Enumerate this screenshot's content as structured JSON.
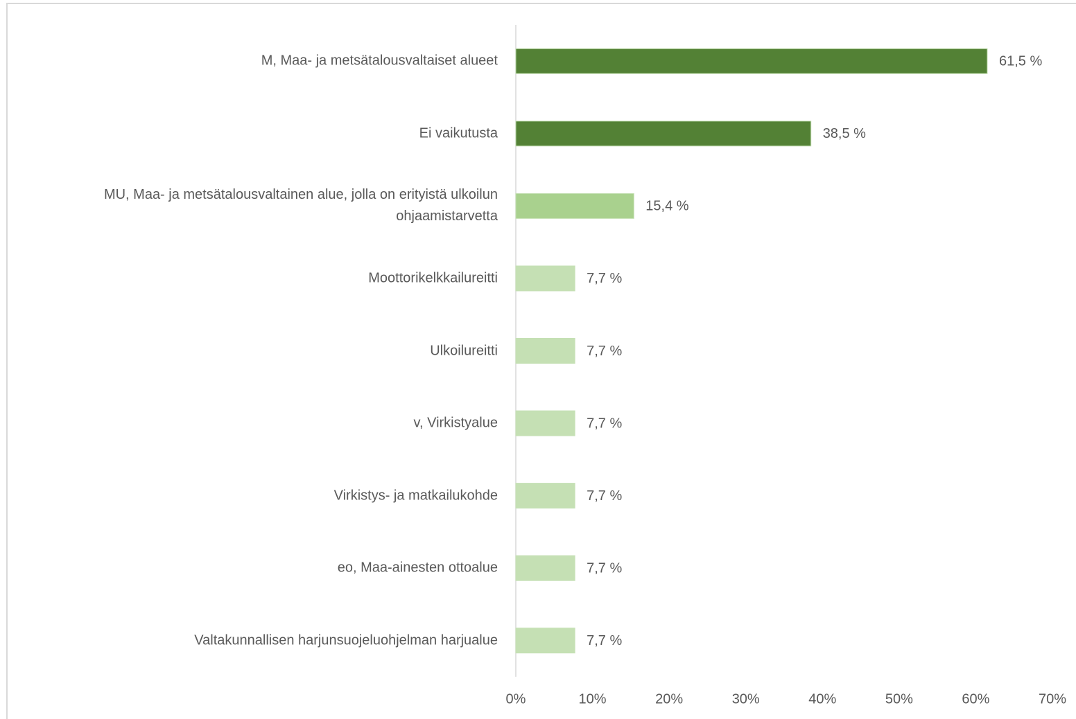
{
  "chart_data": {
    "type": "bar",
    "orientation": "horizontal",
    "categories": [
      "M, Maa- ja metsätalousvaltaiset alueet",
      "Ei vaikutusta",
      "MU, Maa- ja metsätalousvaltainen alue, jolla on erityistä ulkoilun ohjaamistarvetta",
      "Moottorikelkkailureitti",
      "Ulkoilureitti",
      "v, Virkistyalue",
      "Virkistys- ja matkailukohde",
      "eo, Maa-ainesten ottoalue",
      "Valtakunnallisen harjunsuojeluohjelman harjualue"
    ],
    "values": [
      61.5,
      38.5,
      15.4,
      7.7,
      7.7,
      7.7,
      7.7,
      7.7,
      7.7
    ],
    "value_labels": [
      "61,5 %",
      "38,5 %",
      "15,4 %",
      "7,7 %",
      "7,7 %",
      "7,7 %",
      "7,7 %",
      "7,7 %",
      "7,7 %"
    ],
    "colors": [
      "#538135",
      "#538135",
      "#a9d18e",
      "#c5e0b4",
      "#c5e0b4",
      "#c5e0b4",
      "#c5e0b4",
      "#c5e0b4",
      "#c5e0b4"
    ],
    "xlim": [
      0,
      70
    ],
    "xticks": [
      {
        "value": 0,
        "label": "0%"
      },
      {
        "value": 10,
        "label": "10%"
      },
      {
        "value": 20,
        "label": "20%"
      },
      {
        "value": 30,
        "label": "30%"
      },
      {
        "value": 40,
        "label": "40%"
      },
      {
        "value": 50,
        "label": "50%"
      },
      {
        "value": 60,
        "label": "60%"
      },
      {
        "value": 70,
        "label": "70%"
      }
    ],
    "grid": false
  }
}
